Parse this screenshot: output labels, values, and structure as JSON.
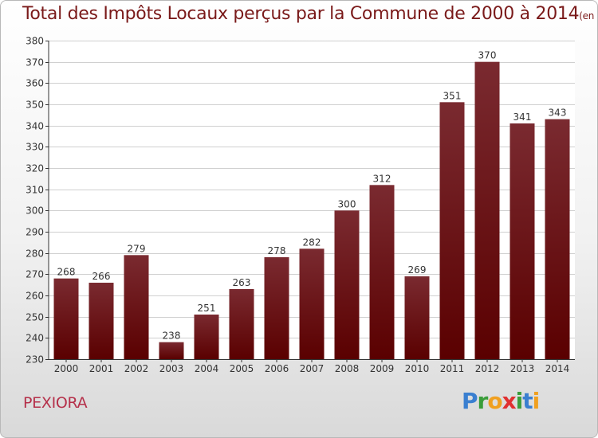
{
  "chart_data": {
    "type": "bar",
    "title": "Total des Impôts Locaux perçus par la Commune de 2000 à 2014",
    "subtitle": "(en milliers d'€)",
    "categories": [
      "2000",
      "2001",
      "2002",
      "2003",
      "2004",
      "2005",
      "2006",
      "2007",
      "2008",
      "2009",
      "2010",
      "2011",
      "2012",
      "2013",
      "2014"
    ],
    "values": [
      268,
      266,
      279,
      238,
      251,
      263,
      278,
      282,
      300,
      312,
      269,
      351,
      370,
      341,
      343
    ],
    "ylim": [
      230,
      380
    ],
    "yticks": [
      230,
      240,
      250,
      260,
      270,
      280,
      290,
      300,
      310,
      320,
      330,
      340,
      350,
      360,
      370,
      380
    ],
    "grid": true,
    "xlabel": "",
    "ylabel": "",
    "colors": {
      "bar_top": "#7a2a30",
      "bar_bottom": "#5a0000",
      "grid": "#d0d0d0",
      "axis": "#333333"
    }
  },
  "commune": "PEXIORA",
  "brand": {
    "letters": [
      "P",
      "r",
      "o",
      "x",
      "i",
      "t",
      "i"
    ],
    "colors": [
      "#3a7fd0",
      "#3a9d3a",
      "#f0a020",
      "#e03030",
      "#3a9d3a",
      "#3a7fd0",
      "#f0a020"
    ]
  }
}
